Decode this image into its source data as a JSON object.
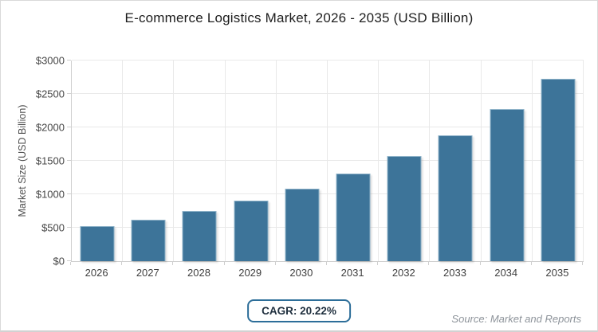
{
  "chart_data": {
    "type": "bar",
    "title": "E-commerce Logistics Market, 2026 - 2035 (USD Billion)",
    "categories": [
      "2026",
      "2027",
      "2028",
      "2029",
      "2030",
      "2031",
      "2032",
      "2033",
      "2034",
      "2035"
    ],
    "values": [
      520,
      625,
      752,
      904,
      1086,
      1306,
      1570,
      1887,
      2269,
      2728
    ],
    "xlabel": "",
    "ylabel": "Market Size (USD Billion)",
    "ylim": [
      0,
      3000
    ],
    "ytick_step": 500,
    "ytick_labels": [
      "$0",
      "$500",
      "$1000",
      "$1500",
      "$2000",
      "$2500",
      "$3000"
    ],
    "grid": true,
    "legend": "none",
    "bar_color": "#3d7499",
    "bar_border_color": "#8fb3c9",
    "grid_color": "#e9e9e9"
  },
  "footer": {
    "cagr_label": "CAGR: 20.22%",
    "source_label": "Source: Market and Reports"
  },
  "colors": {
    "accent": "#2d6e99",
    "badge_text": "#20303f",
    "source_text": "#8d939a"
  }
}
